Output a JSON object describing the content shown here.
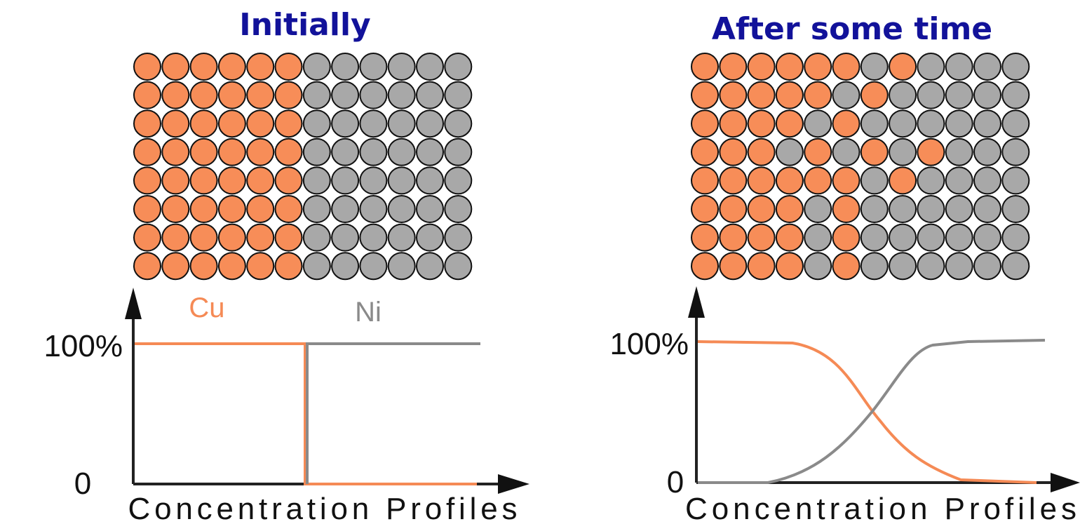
{
  "panels": [
    {
      "title": "Initially",
      "cu_label": "Cu",
      "ni_label": "Ni",
      "y_top": "100%",
      "y_bottom": "0",
      "x_label": "Concentration Profiles"
    },
    {
      "title": "After some time",
      "y_top": "100%",
      "y_bottom": "0",
      "x_label": "Concentration Profiles"
    }
  ]
}
